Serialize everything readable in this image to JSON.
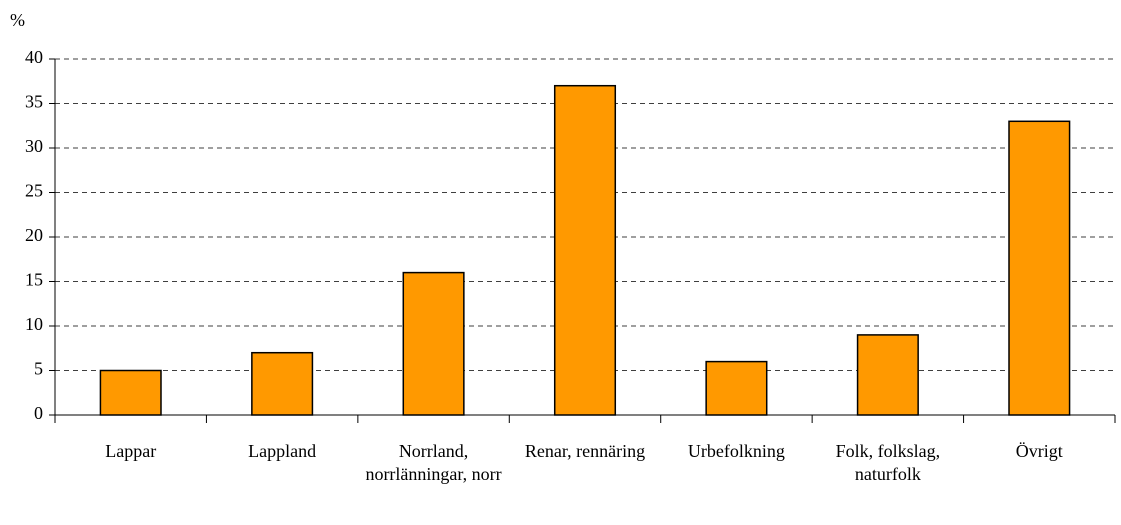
{
  "chart_data": {
    "type": "bar",
    "y_label": "%",
    "categories": [
      "Lappar",
      "Lappland",
      "Norrland, norrlänningar, norr",
      "Renar, rennäring",
      "Urbefolkning",
      "Folk, folkslag, naturfolk",
      "Övrigt"
    ],
    "values": [
      5,
      7,
      16,
      37,
      6,
      9,
      33
    ],
    "color": "#ff9900",
    "ylim": [
      0,
      40
    ],
    "yticks": [
      0,
      5,
      10,
      15,
      20,
      25,
      30,
      35,
      40
    ],
    "grid": true
  }
}
